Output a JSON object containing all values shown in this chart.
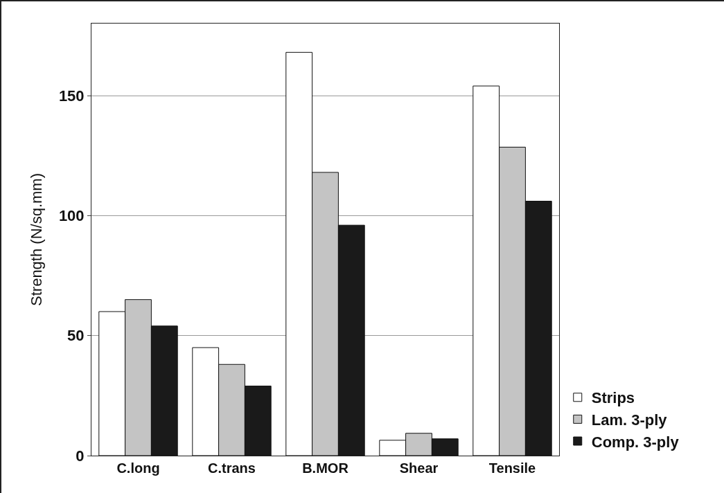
{
  "chart_data": {
    "type": "bar",
    "ylabel": "Strength (N/sq.mm)",
    "categories": [
      "C.long",
      "C.trans",
      "B.MOR",
      "Shear",
      "Tensile"
    ],
    "series": [
      {
        "name": "Strips",
        "color": "#ffffff",
        "values": [
          60,
          45,
          168,
          6.4,
          154
        ]
      },
      {
        "name": "Lam. 3-ply",
        "color": "#c4c4c4",
        "values": [
          65,
          38,
          118,
          9.3,
          128.5
        ]
      },
      {
        "name": "Comp. 3-ply",
        "color": "#1a1a1a",
        "values": [
          54,
          29,
          96,
          7,
          106
        ]
      }
    ],
    "ylim": [
      0,
      180
    ],
    "yticks": [
      0,
      50,
      100,
      150
    ],
    "grid": "y",
    "legend": "bottom right"
  }
}
